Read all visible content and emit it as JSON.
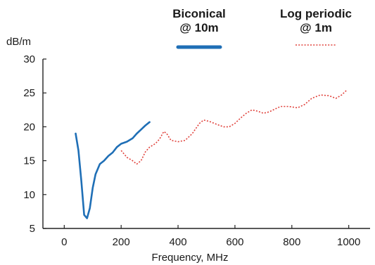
{
  "chart_data": {
    "type": "line",
    "xlabel": "Frequency, MHz",
    "ylabel": "dB/m",
    "xlim": [
      -75,
      1075
    ],
    "ylim": [
      5,
      30
    ],
    "xticks": [
      0,
      200,
      400,
      600,
      800,
      1000
    ],
    "yticks": [
      5,
      10,
      15,
      20,
      25,
      30
    ],
    "grid": false,
    "legend_position": "top",
    "series": [
      {
        "name_lines": [
          "Biconical",
          "@ 10m"
        ],
        "color": "#1f6fb6",
        "style": "solid",
        "points": [
          [
            40,
            19
          ],
          [
            50,
            16.5
          ],
          [
            60,
            12
          ],
          [
            70,
            7
          ],
          [
            80,
            6.5
          ],
          [
            90,
            8
          ],
          [
            100,
            11
          ],
          [
            110,
            13
          ],
          [
            125,
            14.5
          ],
          [
            140,
            15
          ],
          [
            155,
            15.7
          ],
          [
            170,
            16.2
          ],
          [
            185,
            17
          ],
          [
            200,
            17.5
          ],
          [
            220,
            17.8
          ],
          [
            240,
            18.3
          ],
          [
            255,
            19
          ],
          [
            270,
            19.6
          ],
          [
            285,
            20.2
          ],
          [
            300,
            20.7
          ]
        ]
      },
      {
        "name_lines": [
          "Log periodic",
          "@ 1m"
        ],
        "color": "#e0403a",
        "style": "dotted",
        "points": [
          [
            200,
            16.5
          ],
          [
            220,
            15.5
          ],
          [
            240,
            15
          ],
          [
            255,
            14.5
          ],
          [
            270,
            15
          ],
          [
            285,
            16.3
          ],
          [
            300,
            17
          ],
          [
            320,
            17.5
          ],
          [
            335,
            18.2
          ],
          [
            350,
            19.3
          ],
          [
            360,
            19
          ],
          [
            375,
            18
          ],
          [
            400,
            17.8
          ],
          [
            425,
            18
          ],
          [
            450,
            19
          ],
          [
            475,
            20.5
          ],
          [
            490,
            21
          ],
          [
            510,
            20.8
          ],
          [
            540,
            20.3
          ],
          [
            560,
            20
          ],
          [
            580,
            20
          ],
          [
            600,
            20.5
          ],
          [
            620,
            21.3
          ],
          [
            640,
            22
          ],
          [
            660,
            22.5
          ],
          [
            680,
            22.3
          ],
          [
            700,
            22
          ],
          [
            720,
            22.2
          ],
          [
            740,
            22.6
          ],
          [
            760,
            23
          ],
          [
            790,
            23
          ],
          [
            820,
            22.8
          ],
          [
            845,
            23.3
          ],
          [
            870,
            24.2
          ],
          [
            900,
            24.7
          ],
          [
            930,
            24.6
          ],
          [
            955,
            24.2
          ],
          [
            975,
            24.7
          ],
          [
            995,
            25.5
          ]
        ]
      }
    ]
  }
}
